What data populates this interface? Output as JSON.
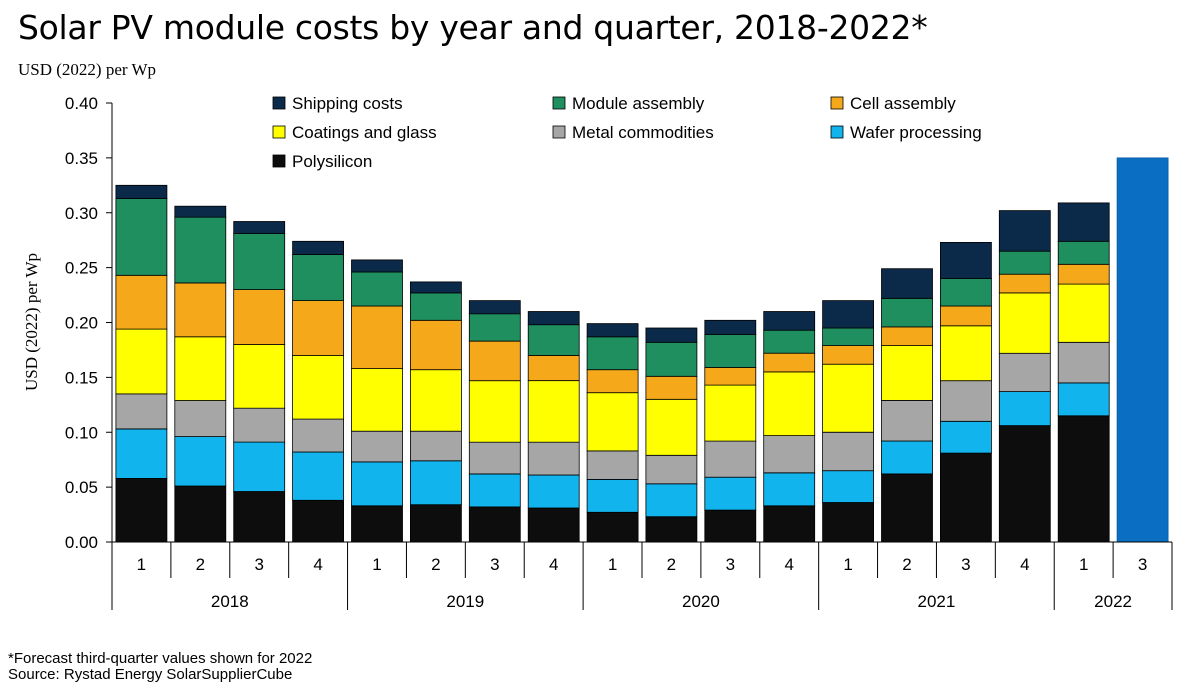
{
  "title": "Solar PV module costs by year and quarter, 2018-2022*",
  "subtitle": "USD (2022) per Wp",
  "footnote": "*Forecast third-quarter values shown for 2022",
  "source": "Source: Rystad Energy SolarSupplierCube",
  "colors": {
    "Shipping costs": "#0b2a4a",
    "Module assembly": "#1f8f5f",
    "Cell assembly": "#f5a91a",
    "Coatings and glass": "#ffff00",
    "Metal commodities": "#a6a6a6",
    "Wafer processing": "#12b4ee",
    "Polysilicon": "#0d0d0d",
    "Forecast": "#0a6ec2"
  },
  "chart_data": {
    "type": "bar",
    "stacked": true,
    "title": "Solar PV module costs by year and quarter, 2018-2022*",
    "ylabel": "USD (2022) per Wp",
    "xlabel": "",
    "ylim": [
      0,
      0.4
    ],
    "yticks": [
      "0.00",
      "0.05",
      "0.10",
      "0.15",
      "0.20",
      "0.25",
      "0.30",
      "0.35",
      "0.40"
    ],
    "ytick_values": [
      0,
      0.05,
      0.1,
      0.15,
      0.2,
      0.25,
      0.3,
      0.35,
      0.4
    ],
    "grid": false,
    "legend": "top",
    "categories": [
      "1",
      "2",
      "3",
      "4",
      "1",
      "2",
      "3",
      "4",
      "1",
      "2",
      "3",
      "4",
      "1",
      "2",
      "3",
      "4",
      "1",
      "3"
    ],
    "groups": [
      {
        "label": "2018",
        "count": 4
      },
      {
        "label": "2019",
        "count": 4
      },
      {
        "label": "2020",
        "count": 4
      },
      {
        "label": "2021",
        "count": 4
      },
      {
        "label": "2022",
        "count": 2
      }
    ],
    "legend_order": [
      "Shipping costs",
      "Module assembly",
      "Cell assembly",
      "Coatings and glass",
      "Metal commodities",
      "Wafer processing",
      "Polysilicon"
    ],
    "series": [
      {
        "name": "Polysilicon",
        "values": [
          0.058,
          0.051,
          0.046,
          0.038,
          0.033,
          0.034,
          0.032,
          0.031,
          0.027,
          0.023,
          0.029,
          0.033,
          0.036,
          0.062,
          0.081,
          0.106,
          0.115,
          null
        ]
      },
      {
        "name": "Wafer processing",
        "values": [
          0.045,
          0.045,
          0.045,
          0.044,
          0.04,
          0.04,
          0.03,
          0.03,
          0.03,
          0.03,
          0.03,
          0.03,
          0.029,
          0.03,
          0.029,
          0.031,
          0.03,
          null
        ]
      },
      {
        "name": "Metal commodities",
        "values": [
          0.032,
          0.033,
          0.031,
          0.03,
          0.028,
          0.027,
          0.029,
          0.03,
          0.026,
          0.026,
          0.033,
          0.034,
          0.035,
          0.037,
          0.037,
          0.035,
          0.037,
          null
        ]
      },
      {
        "name": "Coatings and glass",
        "values": [
          0.059,
          0.058,
          0.058,
          0.058,
          0.057,
          0.056,
          0.056,
          0.056,
          0.053,
          0.051,
          0.051,
          0.058,
          0.062,
          0.05,
          0.05,
          0.055,
          0.053,
          null
        ]
      },
      {
        "name": "Cell assembly",
        "values": [
          0.049,
          0.049,
          0.05,
          0.05,
          0.057,
          0.045,
          0.036,
          0.023,
          0.021,
          0.021,
          0.016,
          0.017,
          0.017,
          0.017,
          0.018,
          0.017,
          0.018,
          null
        ]
      },
      {
        "name": "Module assembly",
        "values": [
          0.07,
          0.06,
          0.051,
          0.042,
          0.031,
          0.025,
          0.025,
          0.028,
          0.03,
          0.031,
          0.03,
          0.021,
          0.016,
          0.026,
          0.025,
          0.021,
          0.021,
          null
        ]
      },
      {
        "name": "Shipping costs",
        "values": [
          0.012,
          0.01,
          0.011,
          0.012,
          0.011,
          0.01,
          0.012,
          0.012,
          0.012,
          0.013,
          0.013,
          0.017,
          0.025,
          0.027,
          0.033,
          0.037,
          0.035,
          null
        ]
      }
    ],
    "forecast": {
      "name": "Forecast",
      "index": 17,
      "value": 0.35
    }
  }
}
